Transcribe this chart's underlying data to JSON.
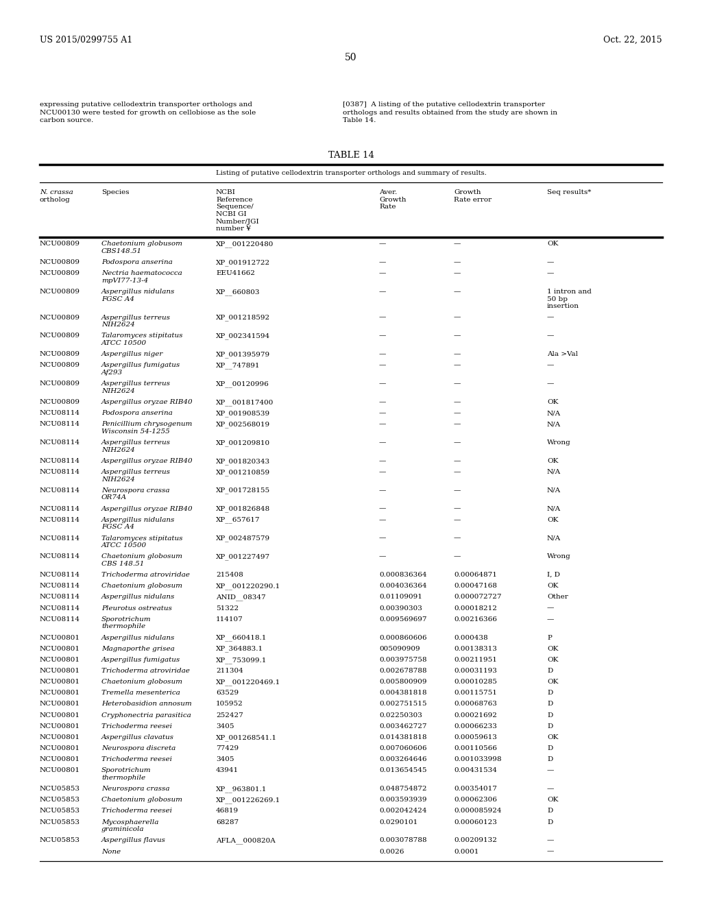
{
  "patent_number": "US 2015/0299755 A1",
  "date": "Oct. 22, 2015",
  "page_number": "50",
  "left_para_lines": [
    "expressing putative cellodextrin transporter orthologs and",
    "NCU00130 were tested for growth on cellobiose as the sole",
    "carbon source."
  ],
  "right_para_lines": [
    "[0387]  A listing of the putative cellodextrin transporter",
    "orthologs and results obtained from the study are shown in",
    "Table 14."
  ],
  "table_title": "TABLE 14",
  "table_subtitle": "Listing of putative cellodextrin transporter orthologs and summary of results.",
  "col_headers": [
    [
      "N. crassa",
      "ortholog"
    ],
    [
      "Species"
    ],
    [
      "NCBI",
      "Reference",
      "Sequence/",
      "NCBI GI",
      "Number/JGI",
      "number ¥"
    ],
    [
      "Aver.",
      "Growth",
      "Rate"
    ],
    [
      "Growth",
      "Rate error"
    ],
    [
      "Seq results*"
    ]
  ],
  "col_header_italic": [
    true,
    false,
    false,
    false,
    false,
    false
  ],
  "rows": [
    [
      "NCU00809",
      "Chaetonium globusom\nCBS148.51",
      "XP__001220480",
      "—",
      "—",
      "OK"
    ],
    [
      "NCU00809",
      "Podospora anserina",
      "XP_001912722",
      "—",
      "—",
      "—"
    ],
    [
      "NCU00809",
      "Nectria haematococca\nmpVI77-13-4",
      "EEU41662",
      "—",
      "—",
      "—"
    ],
    [
      "NCU00809",
      "Aspergillus nidulans\nFGSC A4",
      "XP__660803",
      "—",
      "—",
      "1 intron and\n50 bp\ninsertion"
    ],
    [
      "NCU00809",
      "Aspergillus terreus\nNIH2624",
      "XP_001218592",
      "—",
      "—",
      "—"
    ],
    [
      "NCU00809",
      "Talaromyces stipitatus\nATCC 10500",
      "XP_002341594",
      "—",
      "—",
      "—"
    ],
    [
      "NCU00809",
      "Aspergillus niger",
      "XP_001395979",
      "—",
      "—",
      "Ala >Val"
    ],
    [
      "NCU00809",
      "Aspergillus fumigatus\nAf293",
      "XP__747891",
      "—",
      "—",
      "—"
    ],
    [
      "NCU00809",
      "Aspergillus terreus\nNIH2624",
      "XP__00120996",
      "—",
      "—",
      "—"
    ],
    [
      "NCU00809",
      "Aspergillus oryzae RIB40",
      "XP__001817400",
      "—",
      "—",
      "OK"
    ],
    [
      "NCU08114",
      "Podospora anserina",
      "XP_001908539",
      "—",
      "—",
      "N/A"
    ],
    [
      "NCU08114",
      "Penicillium chrysogenum\nWisconsin 54-1255",
      "XP_002568019",
      "—",
      "—",
      "N/A"
    ],
    [
      "NCU08114",
      "Aspergillus terreus\nNIH2624",
      "XP_001209810",
      "—",
      "—",
      "Wrong"
    ],
    [
      "NCU08114",
      "Aspergillus oryzae RIB40",
      "XP_001820343",
      "—",
      "—",
      "OK"
    ],
    [
      "NCU08114",
      "Aspergillus terreus\nNIH2624",
      "XP_001210859",
      "—",
      "—",
      "N/A"
    ],
    [
      "NCU08114",
      "Neurospora crassa\nOR74A",
      "XP_001728155",
      "—",
      "—",
      "N/A"
    ],
    [
      "NCU08114",
      "Aspergillus oryzae RIB40",
      "XP_001826848",
      "—",
      "—",
      "N/A"
    ],
    [
      "NCU08114",
      "Aspergillus nidulans\nFGSC A4",
      "XP__657617",
      "—",
      "—",
      "OK"
    ],
    [
      "NCU08114",
      "Talaromyces stipitatus\nATCC 10500",
      "XP_002487579",
      "—",
      "—",
      "N/A"
    ],
    [
      "NCU08114",
      "Chaetonium globosum\nCBS 148.51",
      "XP_001227497",
      "—",
      "—",
      "Wrong"
    ],
    [
      "NCU08114",
      "Trichoderma atroviridae",
      "215408",
      "0.000836364",
      "0.00064871",
      "I, D"
    ],
    [
      "NCU08114",
      "Chaetonium globosum",
      "XP__001220290.1",
      "0.004036364",
      "0.00047168",
      "OK"
    ],
    [
      "NCU08114",
      "Aspergillus nidulans",
      "ANID__08347",
      "0.01109091",
      "0.000072727",
      "Other"
    ],
    [
      "NCU08114",
      "Pleurotus ostreatus",
      "51322",
      "0.00390303",
      "0.00018212",
      "—"
    ],
    [
      "NCU08114",
      "Sporotrichum\nthermophile",
      "114107",
      "0.009569697",
      "0.00216366",
      "—"
    ],
    [
      "NCU00801",
      "Aspergillus nidulans",
      "XP__660418.1",
      "0.000860606",
      "0.000438",
      "P"
    ],
    [
      "NCU00801",
      "Magnaporthe grisea",
      "XP_364883.1",
      "005090909",
      "0.00138313",
      "OK"
    ],
    [
      "NCU00801",
      "Aspergillus fumigatus",
      "XP__753099.1",
      "0.003975758",
      "0.00211951",
      "OK"
    ],
    [
      "NCU00801",
      "Trichoderma atroviridae",
      "211304",
      "0.002678788",
      "0.00031193",
      "D"
    ],
    [
      "NCU00801",
      "Chaetonium globosum",
      "XP__001220469.1",
      "0.005800909",
      "0.00010285",
      "OK"
    ],
    [
      "NCU00801",
      "Tremella mesenterica",
      "63529",
      "0.004381818",
      "0.00115751",
      "D"
    ],
    [
      "NCU00801",
      "Heterobasidion annosum",
      "105952",
      "0.002751515",
      "0.00068763",
      "D"
    ],
    [
      "NCU00801",
      "Cryphonectria parasitica",
      "252427",
      "0.02250303",
      "0.00021692",
      "D"
    ],
    [
      "NCU00801",
      "Trichoderma reesei",
      "3405",
      "0.003462727",
      "0.00066233",
      "D"
    ],
    [
      "NCU00801",
      "Aspergillus clavatus",
      "XP_001268541.1",
      "0.014381818",
      "0.00059613",
      "OK"
    ],
    [
      "NCU00801",
      "Neurospora discreta",
      "77429",
      "0.007060606",
      "0.00110566",
      "D"
    ],
    [
      "NCU00801",
      "Trichoderma reesei",
      "3405",
      "0.003264646",
      "0.001033998",
      "D"
    ],
    [
      "NCU00801",
      "Sporotrichum\nthermophile",
      "43941",
      "0.013654545",
      "0.00431534",
      "—"
    ],
    [
      "NCU05853",
      "Neurospora crassa",
      "XP__963801.1",
      "0.048754872",
      "0.00354017",
      "—"
    ],
    [
      "NCU05853",
      "Chaetonium globosum",
      "XP__001226269.1",
      "0.003593939",
      "0.00062306",
      "OK"
    ],
    [
      "NCU05853",
      "Trichoderma reesei",
      "46819",
      "0.002042424",
      "0.000085924",
      "D"
    ],
    [
      "NCU05853",
      "Mycosphaerella\ngraminicola",
      "68287",
      "0.0290101",
      "0.00060123",
      "D"
    ],
    [
      "NCU05853",
      "Aspergillus flavus",
      "AFLA__000820A",
      "0.003078788",
      "0.00209132",
      "—"
    ],
    [
      "",
      "None",
      "",
      "0.0026",
      "0.0001",
      "—"
    ]
  ],
  "bg_color": "#ffffff",
  "text_color": "#000000",
  "font_size": 7.5,
  "title_font_size": 9.5
}
